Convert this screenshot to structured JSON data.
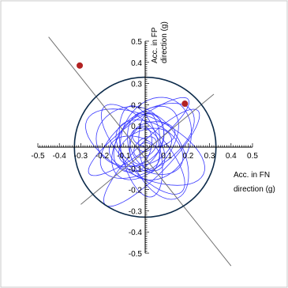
{
  "chart_data": {
    "type": "scatter",
    "title": "",
    "xlabel": [
      "Acc. in FN",
      "direction (g)"
    ],
    "ylabel": [
      "Acc. in FP",
      "direction (g)"
    ],
    "xlim": [
      -0.5,
      0.5
    ],
    "ylim": [
      -0.5,
      0.5
    ],
    "x_ticks": [
      -0.5,
      -0.4,
      -0.3,
      -0.2,
      -0.1,
      0.1,
      0.2,
      0.3,
      0.4,
      0.5
    ],
    "y_ticks": [
      0.5,
      0.4,
      0.3,
      0.2,
      0.1,
      -0.1,
      -0.2,
      -0.3,
      -0.4,
      -0.5
    ],
    "x_tick_labels": [
      "-0.5",
      "-0.4",
      "-0.3",
      "-0.2",
      "-0.1",
      "0.1",
      "0.2",
      "0.3",
      "0.4",
      "0.5"
    ],
    "y_tick_labels": [
      "0.5",
      "0.4",
      "0.3",
      "0.2",
      "0.1",
      "-0.1",
      "-0.2",
      "-0.3",
      "-0.4",
      "-0.5"
    ],
    "grid": false,
    "peak_points": [
      {
        "x": -0.305,
        "y": 0.385
      },
      {
        "x": 0.185,
        "y": 0.205
      }
    ],
    "principal_axes": [
      {
        "from": [
          -0.45,
          0.52
        ],
        "to": [
          0.4,
          -0.56
        ]
      },
      {
        "from": [
          -0.3,
          -0.27
        ],
        "to": [
          0.32,
          0.25
        ]
      }
    ],
    "circle": {
      "center": [
        0.0,
        0.0
      ],
      "radius": 0.33
    },
    "colors": {
      "trace": "#3b3bff",
      "points": "#b22222",
      "circle": "#0b2a4a",
      "axes_lines": "#707070",
      "frame": "#c8c8c8"
    }
  }
}
